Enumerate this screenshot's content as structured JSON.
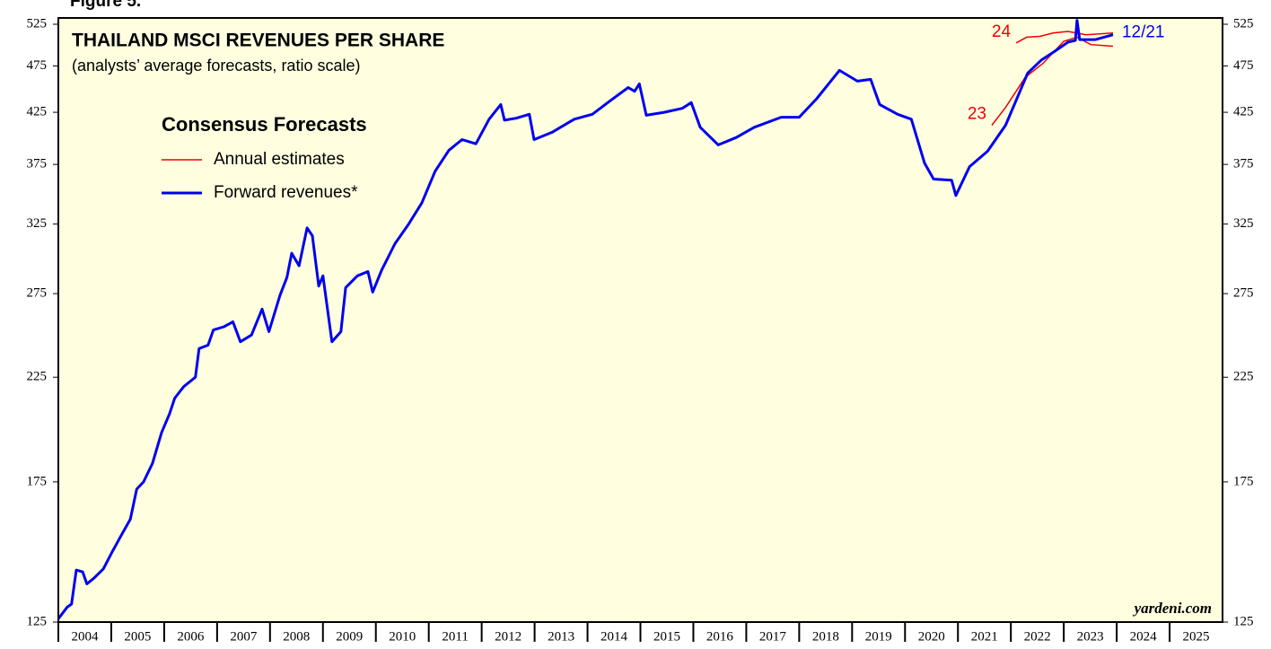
{
  "chart_data": {
    "type": "line",
    "figure_label": "Figure 5.",
    "title": "THAILAND MSCI REVENUES PER SHARE",
    "subtitle": "(analysts’ average forecasts, ratio scale)",
    "legend_title": "Consensus Forecasts",
    "source": "yardeni.com",
    "log_scale": true,
    "xlim": [
      2004,
      2026
    ],
    "ylim": [
      125,
      533
    ],
    "yticks": [
      125,
      175,
      225,
      275,
      325,
      375,
      425,
      475,
      525
    ],
    "years": [
      2004,
      2005,
      2006,
      2007,
      2008,
      2009,
      2010,
      2011,
      2012,
      2013,
      2014,
      2015,
      2016,
      2017,
      2018,
      2019,
      2020,
      2021,
      2022,
      2023,
      2024,
      2025
    ],
    "series": [
      {
        "name": "Forward revenues*",
        "color": "#0000ee",
        "x": [
          2004.0,
          2004.17,
          2004.25,
          2004.34,
          2004.46,
          2004.54,
          2004.68,
          2004.85,
          2005.02,
          2005.19,
          2005.36,
          2005.48,
          2005.61,
          2005.78,
          2005.95,
          2006.1,
          2006.2,
          2006.37,
          2006.59,
          2006.66,
          2006.83,
          2006.93,
          2007.13,
          2007.3,
          2007.44,
          2007.65,
          2007.85,
          2007.98,
          2008.19,
          2008.32,
          2008.41,
          2008.55,
          2008.7,
          2008.8,
          2008.92,
          2009.0,
          2009.17,
          2009.34,
          2009.43,
          2009.65,
          2009.85,
          2009.94,
          2010.11,
          2010.36,
          2010.62,
          2010.87,
          2011.12,
          2011.38,
          2011.63,
          2011.89,
          2012.14,
          2012.36,
          2012.43,
          2012.65,
          2012.9,
          2012.99,
          2013.33,
          2013.75,
          2014.09,
          2014.43,
          2014.77,
          2014.89,
          2014.98,
          2015.11,
          2015.45,
          2015.79,
          2015.96,
          2016.13,
          2016.47,
          2016.81,
          2017.15,
          2017.66,
          2018.0,
          2018.33,
          2018.76,
          2019.1,
          2019.35,
          2019.52,
          2019.86,
          2020.12,
          2020.37,
          2020.54,
          2020.88,
          2020.96,
          2021.22,
          2021.56,
          2021.9,
          2022.32,
          2022.58,
          2022.83,
          2023.08,
          2023.22,
          2023.25,
          2023.3,
          2023.6,
          2023.93
        ],
        "values": [
          126,
          129.6,
          130.5,
          141.6,
          141,
          137,
          139,
          142,
          148,
          154,
          160,
          172,
          175,
          183,
          197,
          206,
          214,
          220,
          225,
          241,
          243,
          252,
          254,
          257,
          245,
          249,
          265,
          251,
          274,
          286,
          303,
          294,
          322,
          316,
          280,
          287,
          245,
          251,
          279,
          287,
          290,
          276,
          291,
          310,
          325,
          342,
          369,
          388,
          398,
          394,
          418,
          433,
          417,
          419,
          423,
          398,
          405,
          418,
          423,
          437,
          451,
          447,
          455,
          422,
          425,
          429,
          435,
          410,
          393,
          400,
          410,
          420,
          420,
          439,
          470,
          458,
          460,
          433,
          423,
          418,
          376,
          362,
          361,
          348,
          373,
          387,
          412,
          467,
          482,
          492,
          503,
          505,
          530,
          506,
          506,
          512
        ]
      }
    ],
    "annual_estimates": {
      "name": "Annual estimates",
      "color": "#ee0000",
      "lines": [
        {
          "label": "23",
          "x": [
            2021.64,
            2021.9,
            2022.27,
            2022.61,
            2023.0,
            2023.25,
            2023.51,
            2023.93
          ],
          "values": [
            412,
            430,
            462,
            478,
            504,
            509,
            500,
            498
          ]
        },
        {
          "label": "24",
          "x": [
            2022.1,
            2022.3,
            2022.55,
            2022.8,
            2023.08,
            2023.42,
            2023.93
          ],
          "values": [
            502,
            509,
            510,
            514,
            516,
            512,
            514
          ]
        }
      ]
    },
    "end_label": "12/21"
  }
}
